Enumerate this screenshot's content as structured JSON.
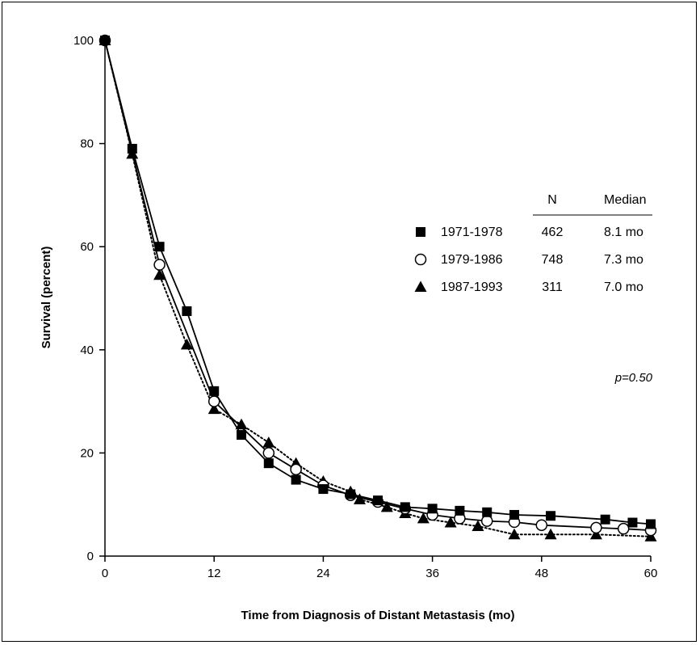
{
  "chart_data": {
    "type": "line",
    "xlabel": "Time from Diagnosis of Distant Metastasis (mo)",
    "ylabel": "Survival (percent)",
    "xlim": [
      0,
      60
    ],
    "ylim": [
      0,
      100
    ],
    "x_ticks": [
      "0",
      "12",
      "24",
      "36",
      "48",
      "60"
    ],
    "y_ticks": [
      "0",
      "20",
      "40",
      "60",
      "80",
      "100"
    ],
    "grid": false,
    "legend_position": "right",
    "legend_header": {
      "n": "N",
      "median": "Median"
    },
    "annotation": "p=0.50",
    "series": [
      {
        "name": "1971-1978",
        "marker": "filled-square",
        "line": "solid",
        "n": "462",
        "median": "8.1 mo",
        "points": [
          [
            0,
            100
          ],
          [
            3,
            79
          ],
          [
            6,
            60
          ],
          [
            9,
            47.5
          ],
          [
            12,
            32
          ],
          [
            15,
            23.5
          ],
          [
            18,
            18
          ],
          [
            21,
            14.8
          ],
          [
            24,
            13
          ],
          [
            27,
            12
          ],
          [
            30,
            10.8
          ],
          [
            33,
            9.5
          ],
          [
            36,
            9.2
          ],
          [
            39,
            8.8
          ],
          [
            42,
            8.5
          ],
          [
            45,
            8
          ],
          [
            49,
            7.8
          ],
          [
            55,
            7.1
          ],
          [
            58,
            6.5
          ],
          [
            60,
            6.2
          ]
        ]
      },
      {
        "name": "1979-1986",
        "marker": "open-circle",
        "line": "solid",
        "n": "748",
        "median": "7.3 mo",
        "points": [
          [
            0,
            100
          ],
          [
            6,
            56.5
          ],
          [
            12,
            30
          ],
          [
            18,
            20
          ],
          [
            21,
            16.8
          ],
          [
            24,
            13.7
          ],
          [
            27,
            11.8
          ],
          [
            30,
            10.5
          ],
          [
            33,
            9.2
          ],
          [
            36,
            8
          ],
          [
            39,
            7.3
          ],
          [
            42,
            6.8
          ],
          [
            45,
            6.6
          ],
          [
            48,
            6
          ],
          [
            54,
            5.5
          ],
          [
            57,
            5.3
          ],
          [
            60,
            5
          ]
        ]
      },
      {
        "name": "1987-1993",
        "marker": "filled-triangle",
        "line": "dotted",
        "n": "311",
        "median": "7.0 mo",
        "points": [
          [
            0,
            100
          ],
          [
            3,
            78
          ],
          [
            6,
            54.5
          ],
          [
            9,
            41
          ],
          [
            12,
            28.5
          ],
          [
            15,
            25.5
          ],
          [
            18,
            22
          ],
          [
            21,
            18
          ],
          [
            24,
            14.5
          ],
          [
            27,
            12.5
          ],
          [
            28,
            11
          ],
          [
            31,
            9.5
          ],
          [
            33,
            8.3
          ],
          [
            35,
            7.3
          ],
          [
            38,
            6.5
          ],
          [
            41,
            5.8
          ],
          [
            45,
            4.2
          ],
          [
            49,
            4.2
          ],
          [
            54,
            4.2
          ],
          [
            60,
            3.8
          ]
        ]
      }
    ]
  }
}
